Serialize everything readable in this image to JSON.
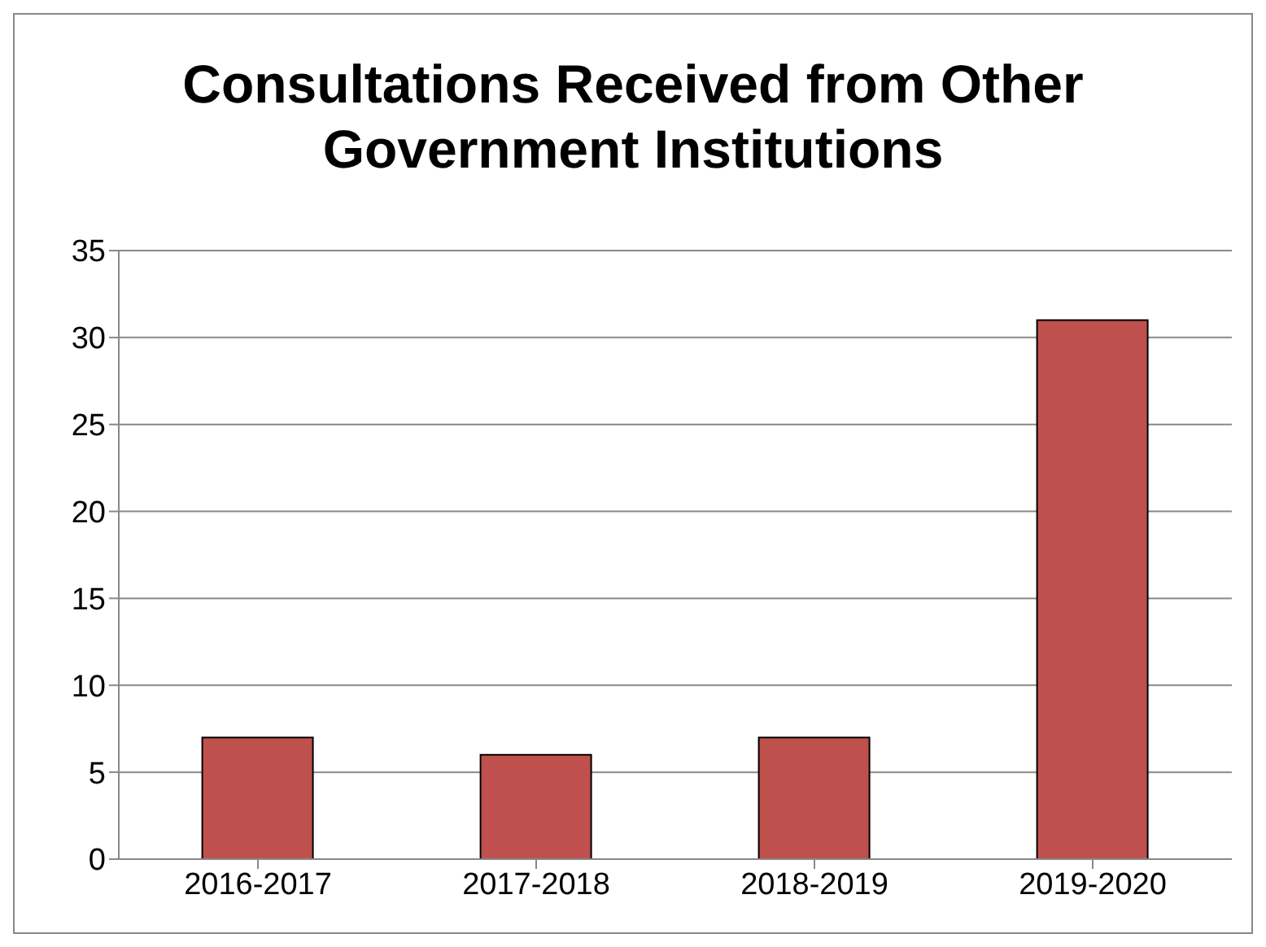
{
  "chart_data": {
    "type": "bar",
    "title": "Consultations Received from Other Government Institutions",
    "categories": [
      "2016-2017",
      "2017-2018",
      "2018-2019",
      "2019-2020"
    ],
    "values": [
      7,
      6,
      7,
      31
    ],
    "color": "#c0504d",
    "ylim": [
      0,
      35
    ],
    "yticks": [
      0,
      5,
      10,
      15,
      20,
      25,
      30,
      35
    ],
    "grid": "y"
  }
}
